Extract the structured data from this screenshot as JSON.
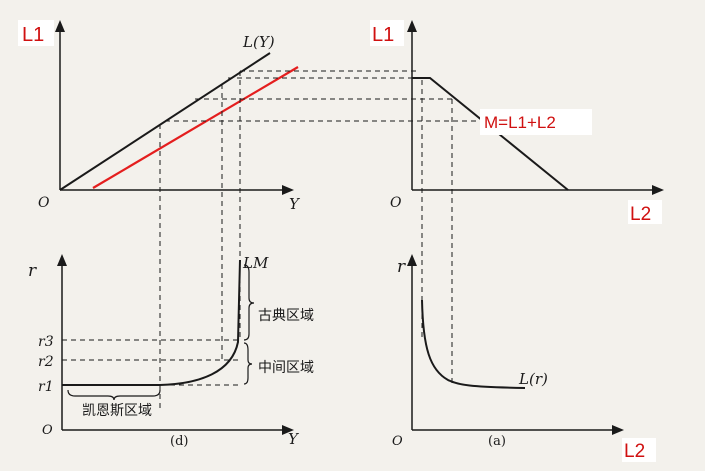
{
  "top_left": {
    "vertical_axis": "L1",
    "horizontal_axis": "Y",
    "origin": "O",
    "curve_label": "L(Y)"
  },
  "top_right": {
    "vertical_axis": "L1",
    "horizontal_axis": "L2",
    "origin": "O",
    "equation": "M=L1+L2"
  },
  "bottom_left": {
    "vertical_axis": "r",
    "horizontal_axis": "Y",
    "origin": "O",
    "curve_label": "LM",
    "rate_levels": [
      "r3",
      "r2",
      "r1"
    ],
    "regions": {
      "classical": "古典区域",
      "intermediate": "中间区域",
      "keynesian": "凯恩斯区域"
    },
    "panel_tag": "(d)"
  },
  "bottom_right": {
    "vertical_axis": "r",
    "horizontal_axis": "L2",
    "origin": "O",
    "curve_label": "L(r)",
    "panel_tag": "(a)"
  },
  "colors": {
    "ink": "#1a1a1a",
    "highlight_line": "#e41e1e",
    "annotation_text": "#d01010",
    "label_box": "#ffffff"
  }
}
